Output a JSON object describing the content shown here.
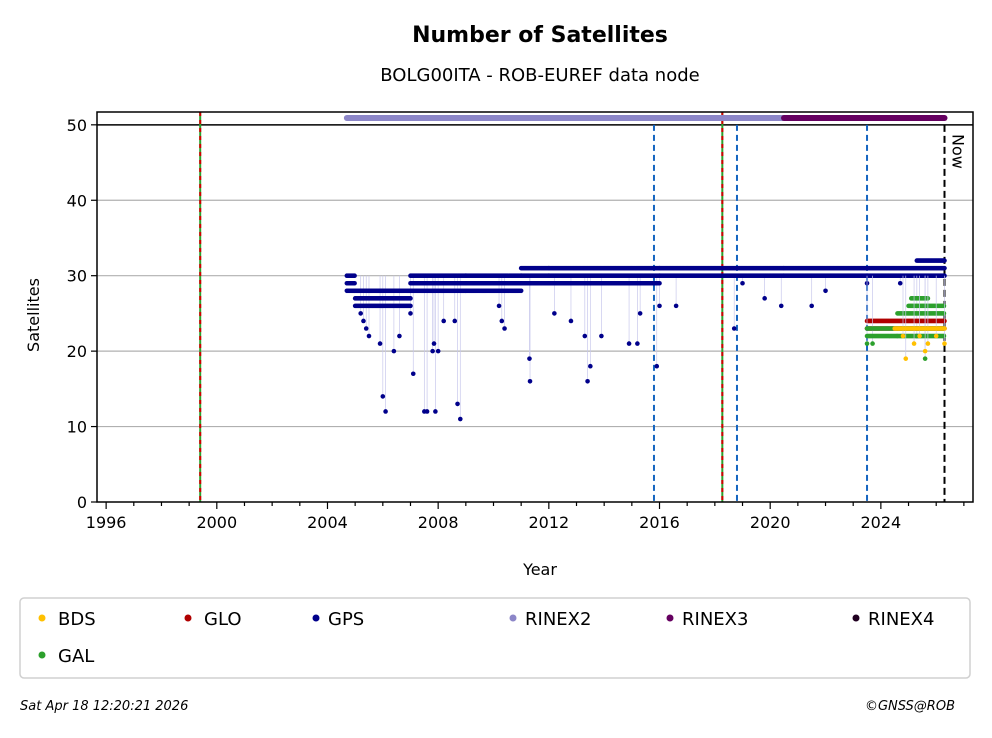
{
  "chart_data": {
    "type": "scatter",
    "title": "Number of Satellites",
    "subtitle": "BOLG00ITA - ROB-EUREF data node",
    "xlabel": "Year",
    "ylabel": "Satellites",
    "xlim": [
      1995.67,
      2027.33
    ],
    "ylim": [
      0,
      51.7
    ],
    "xticks": [
      "1996",
      "2000",
      "2004",
      "2008",
      "2012",
      "2016",
      "2020",
      "2024"
    ],
    "yticks": [
      "0",
      "10",
      "20",
      "30",
      "40",
      "50"
    ],
    "grid": "horizontal",
    "legend_placement": "bottom",
    "now_label": "Now",
    "now_year": 2026.3,
    "event_lines": [
      {
        "year": 1999.4,
        "style": "red-green"
      },
      {
        "year": 2018.27,
        "style": "red-green"
      },
      {
        "year": 2015.8,
        "style": "blue"
      },
      {
        "year": 2018.8,
        "style": "blue"
      },
      {
        "year": 2023.5,
        "style": "blue"
      }
    ],
    "rinex_bars": [
      {
        "name": "RINEX2",
        "from": 2004.7,
        "to": 2020.5,
        "y": 50.9
      },
      {
        "name": "RINEX3",
        "from": 2020.5,
        "to": 2026.3,
        "y": 50.9
      }
    ],
    "series": [
      {
        "name": "GPS",
        "segments": [
          {
            "from": 2004.7,
            "to": 2005.0,
            "values": [
              28,
              29,
              30
            ]
          },
          {
            "from": 2005.0,
            "to": 2007.0,
            "values": [
              26,
              27,
              28
            ]
          },
          {
            "from": 2007.0,
            "to": 2009.0,
            "values": [
              28,
              29,
              30
            ]
          },
          {
            "from": 2009.0,
            "to": 2011.0,
            "values": [
              28,
              29,
              30
            ]
          },
          {
            "from": 2011.0,
            "to": 2012.0,
            "values": [
              29,
              30,
              31
            ]
          },
          {
            "from": 2012.0,
            "to": 2016.0,
            "values": [
              29,
              30,
              31
            ]
          },
          {
            "from": 2016.0,
            "to": 2020.5,
            "values": [
              30,
              31
            ]
          },
          {
            "from": 2020.5,
            "to": 2023.5,
            "values": [
              30,
              31
            ]
          },
          {
            "from": 2023.5,
            "to": 2026.3,
            "values": [
              30,
              31
            ]
          },
          {
            "from": 2025.3,
            "to": 2026.3,
            "values": [
              32
            ]
          }
        ],
        "outliers": [
          [
            2005.2,
            25
          ],
          [
            2005.3,
            24
          ],
          [
            2005.4,
            23
          ],
          [
            2005.5,
            22
          ],
          [
            2005.9,
            21
          ],
          [
            2006.0,
            14
          ],
          [
            2006.1,
            12
          ],
          [
            2006.4,
            20
          ],
          [
            2006.6,
            22
          ],
          [
            2007.0,
            25
          ],
          [
            2007.1,
            17
          ],
          [
            2007.5,
            12
          ],
          [
            2007.6,
            12
          ],
          [
            2007.8,
            20
          ],
          [
            2007.85,
            21
          ],
          [
            2007.9,
            12
          ],
          [
            2008.0,
            20
          ],
          [
            2008.2,
            24
          ],
          [
            2008.6,
            24
          ],
          [
            2008.7,
            13
          ],
          [
            2008.8,
            11
          ],
          [
            2010.2,
            26
          ],
          [
            2010.3,
            24
          ],
          [
            2010.4,
            23
          ],
          [
            2011.3,
            19
          ],
          [
            2011.32,
            16
          ],
          [
            2012.2,
            25
          ],
          [
            2012.8,
            24
          ],
          [
            2013.3,
            22
          ],
          [
            2013.4,
            16
          ],
          [
            2013.5,
            18
          ],
          [
            2013.9,
            22
          ],
          [
            2014.9,
            21
          ],
          [
            2015.2,
            21
          ],
          [
            2015.3,
            25
          ],
          [
            2015.9,
            18
          ],
          [
            2016.0,
            26
          ],
          [
            2016.6,
            26
          ],
          [
            2018.7,
            23
          ],
          [
            2019.0,
            29
          ],
          [
            2019.8,
            27
          ],
          [
            2020.4,
            26
          ],
          [
            2021.5,
            26
          ],
          [
            2022.0,
            28
          ],
          [
            2023.5,
            29
          ],
          [
            2024.7,
            29
          ]
        ]
      },
      {
        "name": "GLO",
        "segments": [
          {
            "from": 2023.5,
            "to": 2026.3,
            "values": [
              23,
              24
            ]
          }
        ],
        "outliers": [
          [
            2025.3,
            22
          ]
        ]
      },
      {
        "name": "GAL",
        "segments": [
          {
            "from": 2023.5,
            "to": 2024.6,
            "values": [
              22,
              23
            ]
          },
          {
            "from": 2024.6,
            "to": 2026.3,
            "values": [
              22,
              23,
              25
            ]
          },
          {
            "from": 2025.0,
            "to": 2026.3,
            "values": [
              26
            ]
          },
          {
            "from": 2025.1,
            "to": 2025.7,
            "values": [
              27
            ]
          }
        ],
        "outliers": [
          [
            2023.5,
            21
          ],
          [
            2023.7,
            21
          ],
          [
            2025.6,
            19
          ]
        ]
      },
      {
        "name": "BDS",
        "segments": [
          {
            "from": 2024.5,
            "to": 2026.3,
            "values": [
              23
            ]
          }
        ],
        "outliers": [
          [
            2024.8,
            22
          ],
          [
            2024.9,
            19
          ],
          [
            2025.2,
            21
          ],
          [
            2025.4,
            22
          ],
          [
            2025.6,
            20
          ],
          [
            2025.7,
            21
          ],
          [
            2026.0,
            22
          ],
          [
            2026.3,
            21
          ]
        ]
      }
    ]
  },
  "legend": [
    {
      "label": "BDS",
      "color": "#ffc000"
    },
    {
      "label": "GLO",
      "color": "#b00000"
    },
    {
      "label": "GPS",
      "color": "#00008b"
    },
    {
      "label": "RINEX2",
      "color": "#8c86c8"
    },
    {
      "label": "RINEX3",
      "color": "#650060"
    },
    {
      "label": "RINEX4",
      "color": "#200020"
    },
    {
      "label": "GAL",
      "color": "#2ca02c"
    }
  ],
  "footer": {
    "timestamp": "Sat Apr 18 12:20:21 2026",
    "credit": "©GNSS@ROB"
  }
}
